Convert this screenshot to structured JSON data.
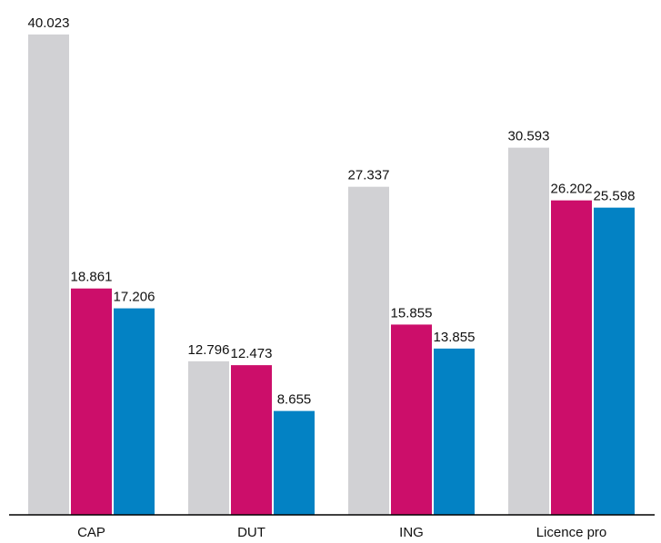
{
  "chart_data": {
    "type": "bar",
    "categories": [
      "CAP",
      "DUT",
      "ING",
      "Licence pro"
    ],
    "series": [
      {
        "color": "#d1d1d4",
        "values": [
          40.023,
          12.796,
          27.337,
          30.593
        ]
      },
      {
        "color": "#cc0e6a",
        "values": [
          18.861,
          12.473,
          15.855,
          26.202
        ]
      },
      {
        "color": "#0382c4",
        "values": [
          17.206,
          8.655,
          13.855,
          25.598
        ]
      }
    ]
  }
}
